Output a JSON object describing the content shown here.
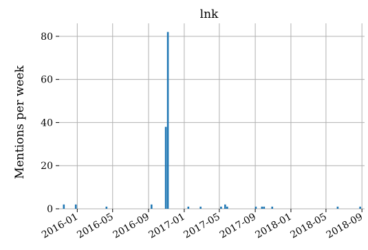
{
  "chart_data": {
    "type": "bar",
    "title": "lnk",
    "xlabel": "",
    "ylabel": "Mentions per week",
    "grid": true,
    "bar_color": "#1f77b4",
    "grid_color": "#b0b0b0",
    "xlim": [
      "2015-10-31",
      "2018-09-10"
    ],
    "ylim": [
      0,
      86
    ],
    "x_ticks": [
      "2016-01",
      "2016-05",
      "2016-09",
      "2017-01",
      "2017-05",
      "2017-09",
      "2018-01",
      "2018-05",
      "2018-09"
    ],
    "y_ticks": [
      0,
      20,
      40,
      60,
      80
    ],
    "weeks": [
      "2015-11-16",
      "2015-12-27",
      "2016-04-10",
      "2016-09-11",
      "2016-10-30",
      "2016-11-06",
      "2017-01-15",
      "2017-02-26",
      "2017-05-07",
      "2017-05-21",
      "2017-05-28",
      "2017-09-03",
      "2017-09-24",
      "2017-10-01",
      "2017-10-29",
      "2018-06-10",
      "2018-08-26"
    ],
    "values": [
      2,
      2,
      1,
      2,
      38,
      82,
      1,
      1,
      1,
      2,
      1,
      1,
      1,
      1,
      1,
      1,
      1
    ]
  }
}
